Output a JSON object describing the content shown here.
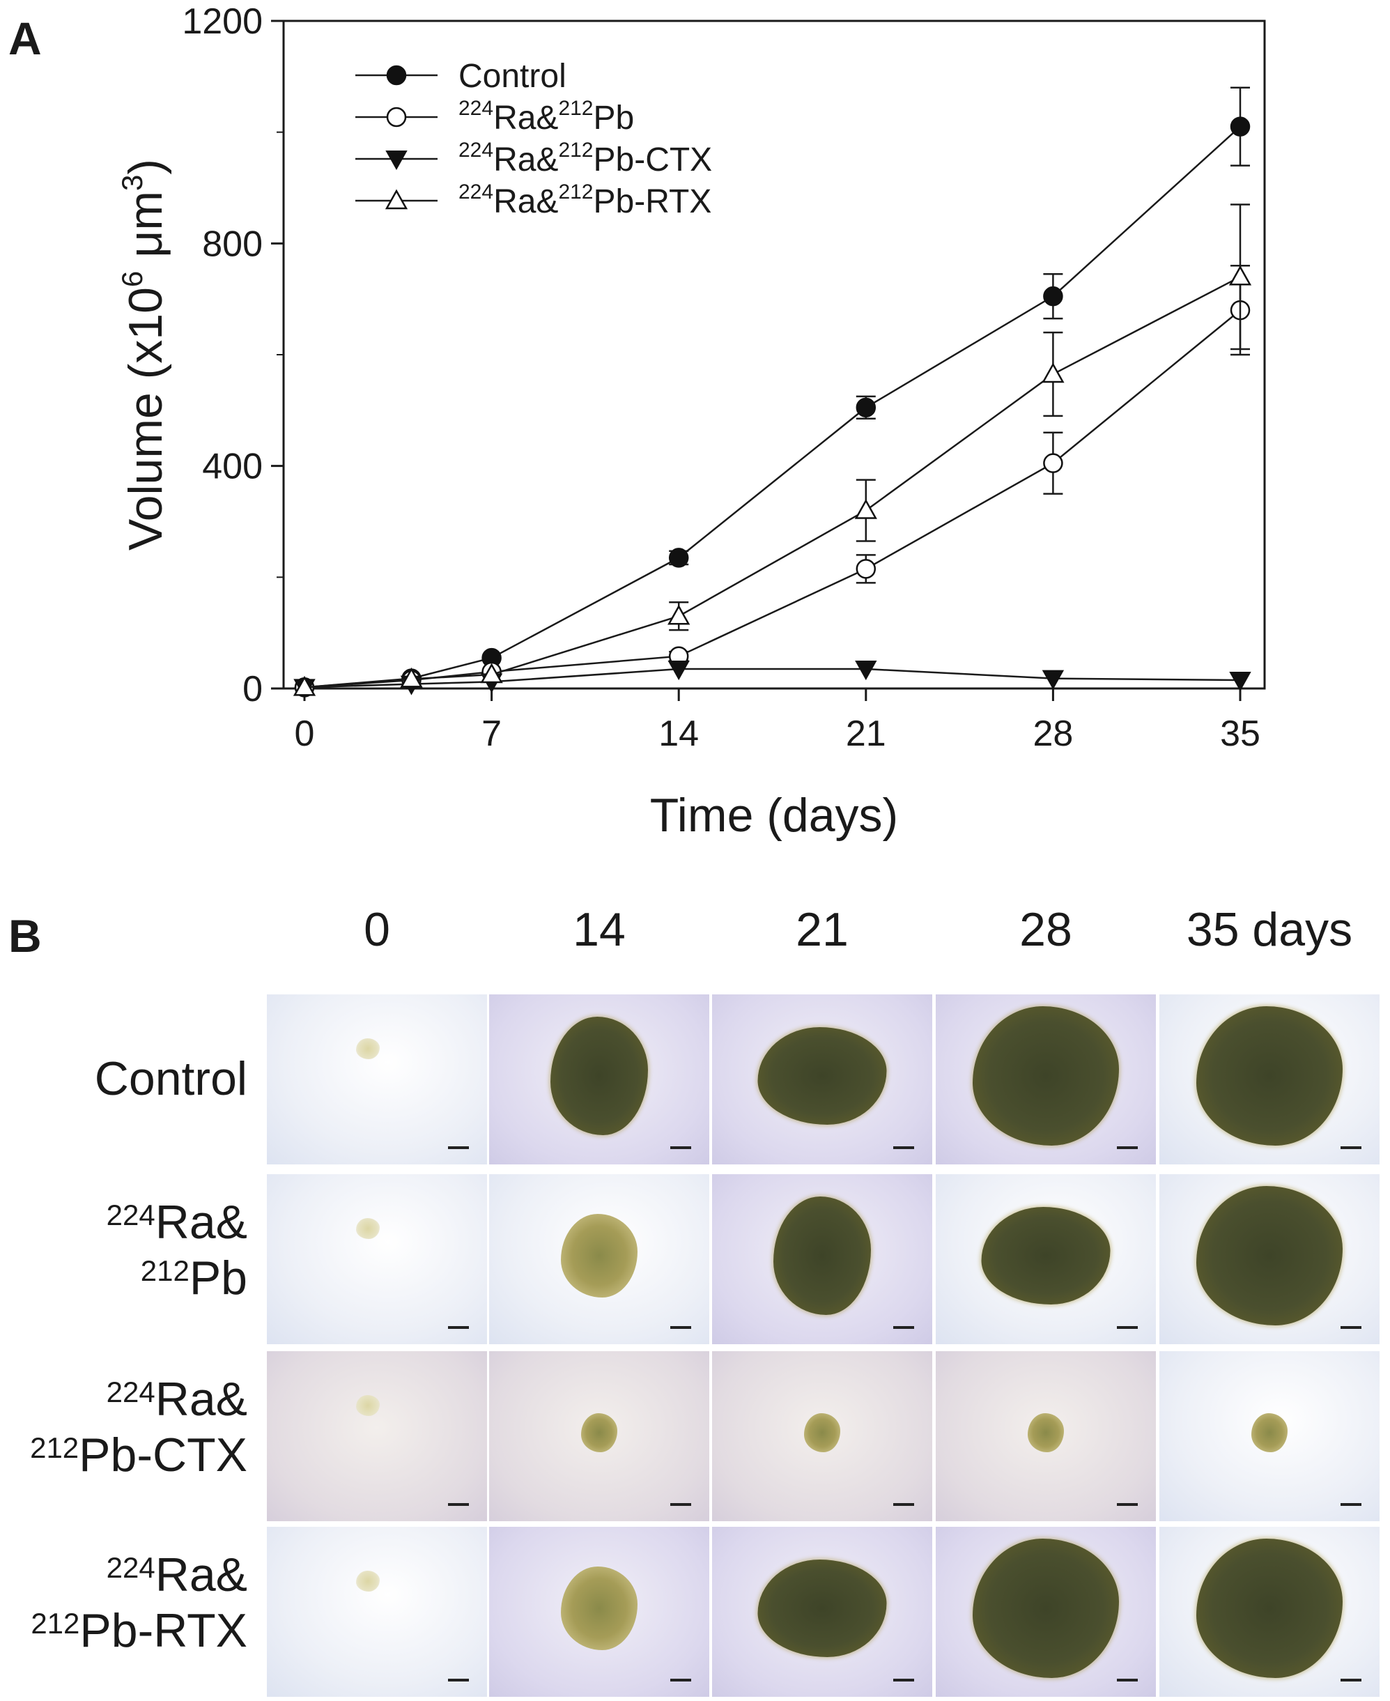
{
  "panel_a_label": "A",
  "panel_b_label": "B",
  "chart_data": {
    "type": "line",
    "xlabel": "Time (days)",
    "ylabel_main": "Volume (x10",
    "ylabel_exp1": "6",
    "ylabel_unit": " μm",
    "ylabel_exp2": "3",
    "ylabel_close": ")",
    "xlim": [
      0,
      35
    ],
    "ylim": [
      0,
      1200
    ],
    "xticks": [
      0,
      7,
      14,
      21,
      28,
      35
    ],
    "yticks": [
      0,
      400,
      800,
      1200
    ],
    "grid": false,
    "legend_position": "top-left",
    "x": [
      0,
      4,
      7,
      14,
      21,
      28,
      35
    ],
    "series": [
      {
        "name": "Control",
        "legend_sup1": "",
        "legend_a": "Control",
        "legend_sup2": "",
        "legend_b": "",
        "marker": "filled-circle",
        "values": [
          2,
          18,
          55,
          235,
          505,
          705,
          1010
        ],
        "errors": [
          1,
          3,
          5,
          12,
          20,
          40,
          70
        ]
      },
      {
        "name": "224Ra&212Pb",
        "legend_sup1": "224",
        "legend_a": "Ra&",
        "legend_sup2": "212",
        "legend_b": "Pb",
        "marker": "open-circle",
        "values": [
          2,
          15,
          30,
          58,
          215,
          405,
          680
        ],
        "errors": [
          1,
          3,
          4,
          8,
          25,
          55,
          80
        ]
      },
      {
        "name": "224Ra&212Pb-CTX",
        "legend_sup1": "224",
        "legend_a": "Ra&",
        "legend_sup2": "212",
        "legend_b": "Pb-CTX",
        "marker": "filled-triangle-down",
        "values": [
          2,
          8,
          12,
          35,
          35,
          18,
          15
        ],
        "errors": [
          1,
          2,
          3,
          4,
          5,
          3,
          3
        ]
      },
      {
        "name": "224Ra&212Pb-RTX",
        "legend_sup1": "224",
        "legend_a": "Ra&",
        "legend_sup2": "212",
        "legend_b": "Pb-RTX",
        "marker": "open-triangle-up",
        "values": [
          2,
          17,
          25,
          130,
          320,
          565,
          740
        ],
        "errors": [
          1,
          3,
          4,
          25,
          55,
          75,
          130
        ]
      }
    ]
  },
  "panel_b": {
    "columns": [
      "0",
      "14",
      "21",
      "28",
      "35 days"
    ],
    "rows": [
      {
        "name": "Control",
        "line1": "Control",
        "sup1": "",
        "text1": "",
        "sup2": "",
        "text2": "",
        "tiles": [
          "tiny",
          "dark-small",
          "dark-med",
          "dark-large",
          "dark-large"
        ]
      },
      {
        "name": "224Ra&212Pb",
        "line1": "",
        "sup1": "224",
        "text1": "Ra&",
        "sup2": "212",
        "text2": "Pb",
        "tiles": [
          "tiny",
          "loose-med",
          "dark-small",
          "dark-med",
          "dark-large"
        ]
      },
      {
        "name": "224Ra&212Pb-CTX",
        "line1": "",
        "sup1": "224",
        "text1": "Ra&",
        "sup2": "212",
        "text2": "Pb-CTX",
        "tiles": [
          "tiny",
          "loose-small",
          "loose-small",
          "loose-small",
          "loose-small"
        ]
      },
      {
        "name": "224Ra&212Pb-RTX",
        "line1": "",
        "sup1": "224",
        "text1": "Ra&",
        "sup2": "212",
        "text2": "Pb-RTX",
        "tiles": [
          "tiny",
          "loose-med",
          "dark-med",
          "dark-large",
          "dark-large"
        ]
      }
    ]
  }
}
